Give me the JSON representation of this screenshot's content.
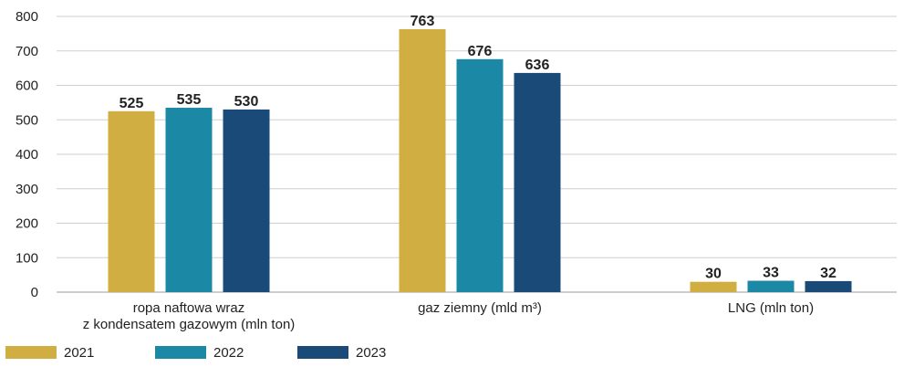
{
  "chart_data": {
    "type": "bar",
    "categories": [
      [
        "ropa naftowa wraz",
        "z kondensatem gazowym (mln ton)"
      ],
      [
        "gaz ziemny (mld m³)"
      ],
      [
        "LNG (mln ton)"
      ]
    ],
    "series": [
      {
        "name": "2021",
        "color": "#D1AE42",
        "values": [
          525,
          763,
          30
        ]
      },
      {
        "name": "2022",
        "color": "#1B89A6",
        "values": [
          535,
          676,
          33
        ]
      },
      {
        "name": "2023",
        "color": "#1A4A77",
        "values": [
          530,
          636,
          32
        ]
      }
    ],
    "ylim": [
      0,
      800
    ],
    "yticks": [
      0,
      100,
      200,
      300,
      400,
      500,
      600,
      700,
      800
    ],
    "grid": true,
    "legend_position": "bottom-left",
    "data_labels": true
  }
}
